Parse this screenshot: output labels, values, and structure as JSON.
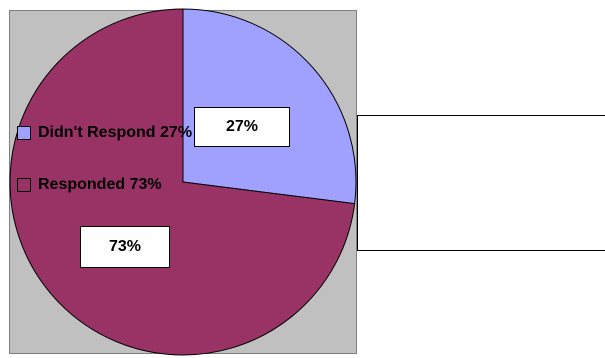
{
  "chart_data": {
    "type": "pie",
    "categories": [
      "Didn't Respond",
      "Responded"
    ],
    "values": [
      27,
      73
    ],
    "slice_labels": [
      "27%",
      "73%"
    ],
    "legend_entries": [
      "Didn't Respond 27%",
      "Responded 73%"
    ],
    "colors": [
      "#a0a0ff",
      "#993366"
    ],
    "legend_position": "right",
    "plot_background": "#c0c0c0"
  }
}
